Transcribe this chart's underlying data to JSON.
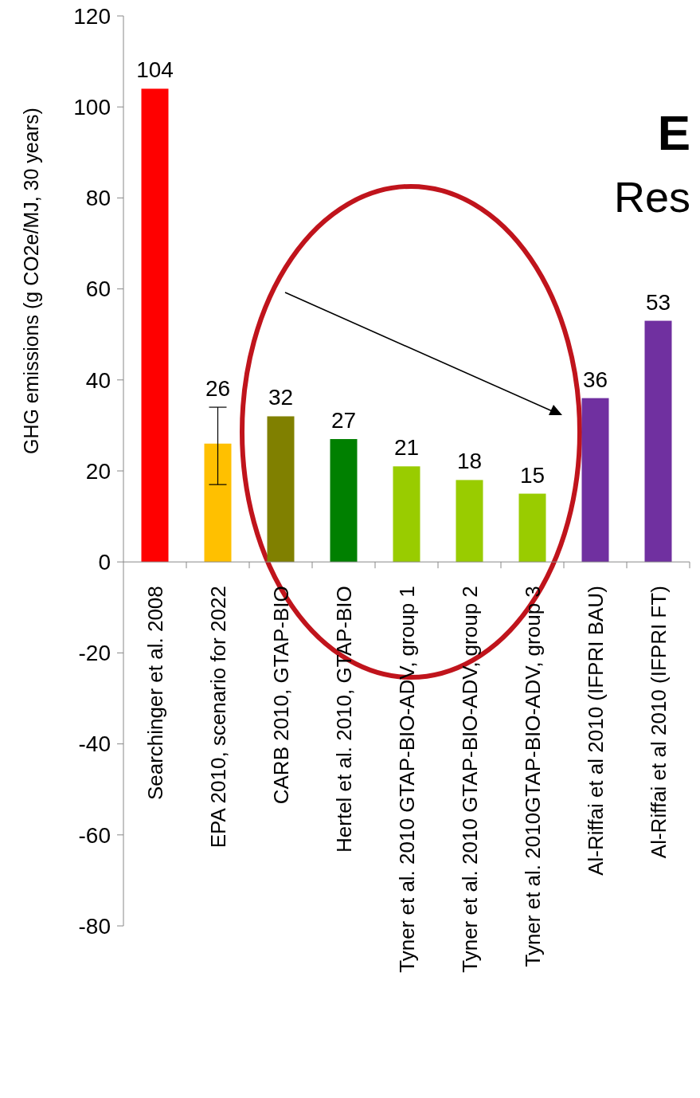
{
  "chart_data": {
    "type": "bar",
    "ylabel": "GHG emissions (g CO2e/MJ, 30 years)",
    "categories": [
      "Searchinger et al. 2008",
      "EPA 2010, scenario for 2022",
      "CARB 2010, GTAP-BIO",
      "Hertel et al. 2010, GTAP-BIO",
      "Tyner et al. 2010 GTAP-BIO-ADV, group 1",
      "Tyner et al. 2010 GTAP-BIO-ADV, group 2",
      "Tyner et al. 2010GTAP-BIO-ADV, group 3",
      "Al-Riffai et al 2010 (IFPRI BAU)",
      "Al-Riffai et al 2010 (IFPRI FT)"
    ],
    "values": [
      104,
      26,
      32,
      27,
      21,
      18,
      15,
      36,
      53
    ],
    "colors": [
      "#ff0000",
      "#ffc000",
      "#808000",
      "#008000",
      "#99cc00",
      "#99cc00",
      "#99cc00",
      "#7030a0",
      "#7030a0"
    ],
    "errors": [
      null,
      [
        17,
        34
      ],
      null,
      null,
      null,
      null,
      null,
      null,
      null
    ],
    "data_labels": true,
    "ylim": [
      -80,
      120
    ],
    "yticks": [
      -80,
      -60,
      -40,
      -20,
      0,
      20,
      40,
      60,
      80,
      100,
      120
    ],
    "annotations": [
      "E",
      "Res"
    ]
  }
}
